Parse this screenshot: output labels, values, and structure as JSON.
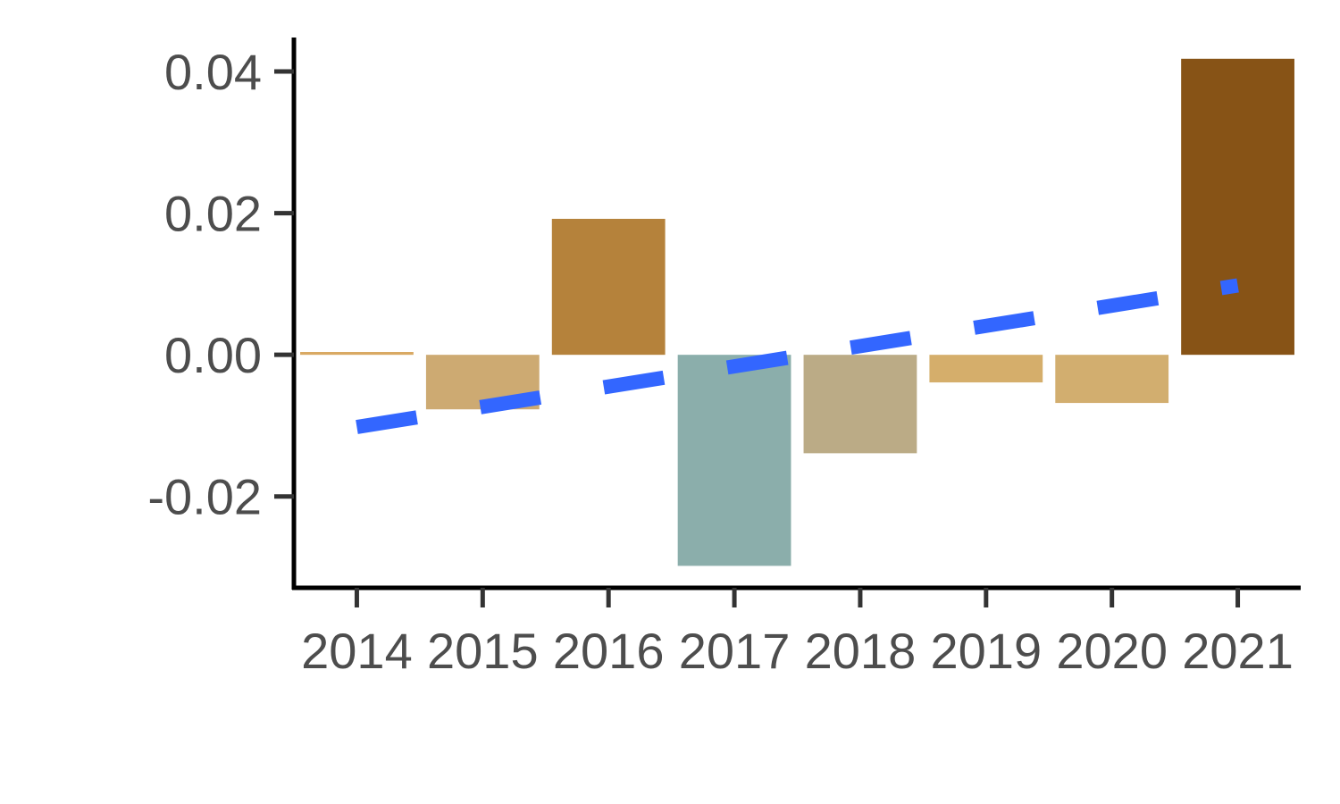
{
  "chart_data": {
    "type": "bar",
    "title": "",
    "xlabel": "",
    "ylabel": "",
    "categories": [
      "2014",
      "2015",
      "2016",
      "2017",
      "2018",
      "2019",
      "2020",
      "2021"
    ],
    "values": [
      0.0004,
      -0.0077,
      0.0192,
      -0.0298,
      -0.0139,
      -0.0039,
      -0.0068,
      0.0418
    ],
    "bar_colors": [
      "#D9A963",
      "#CDAA72",
      "#B5823B",
      "#8BAEAB",
      "#BBAB86",
      "#D5AE6B",
      "#D2AE6F",
      "#875316"
    ],
    "ylim": [
      -0.0329,
      0.0448
    ],
    "yticks": [
      -0.02,
      0.0,
      0.02,
      0.04
    ],
    "ytick_labels": [
      "-0.02",
      "0.00",
      "0.02",
      "0.04"
    ],
    "trend_line": {
      "style": "dashed",
      "color": "#3366FF",
      "start": {
        "x": "2014",
        "y": -0.0102
      },
      "end": {
        "x": "2021",
        "y": 0.0098
      }
    },
    "grid": false,
    "legend": "none"
  }
}
